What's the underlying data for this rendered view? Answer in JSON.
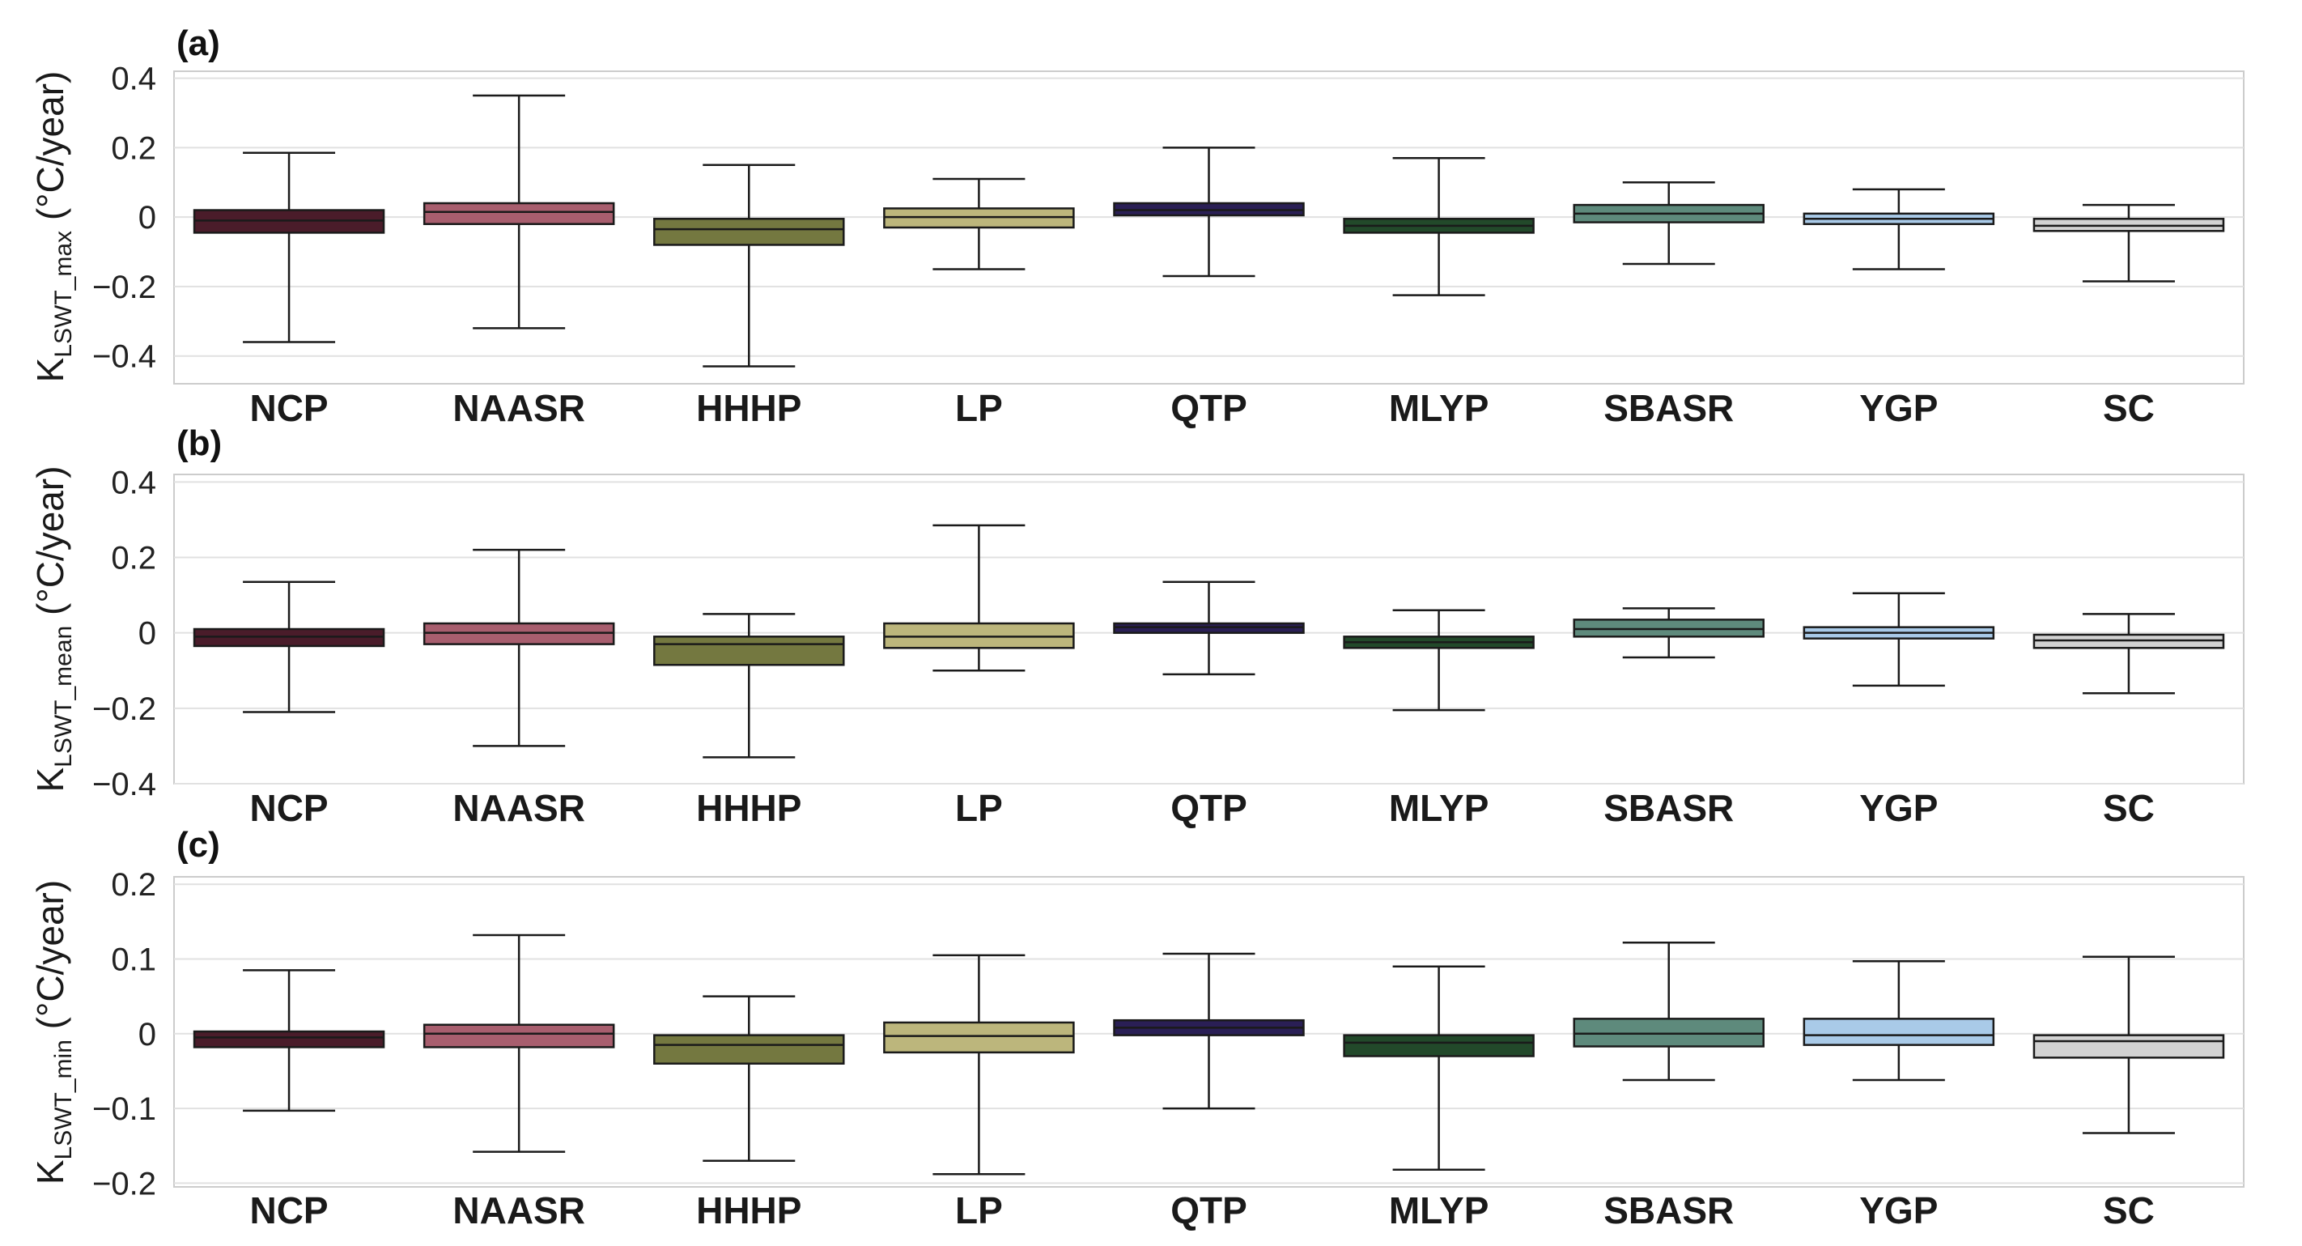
{
  "chart_data": [
    {
      "type": "box",
      "panel_label": "(a)",
      "ylabel": {
        "main": "K",
        "subscript": "LSWT_max",
        "unit": " (°C/year)"
      },
      "ylim": [
        -0.48,
        0.42
      ],
      "yticks": [
        -0.4,
        -0.2,
        0,
        0.2,
        0.4
      ],
      "ytick_labels": [
        "−0.4",
        "−0.2",
        "0",
        "0.2",
        "0.4"
      ],
      "grid": true,
      "categories": [
        "NCP",
        "NAASR",
        "HHHP",
        "LP",
        "QTP",
        "MLYP",
        "SBASR",
        "YGP",
        "SC"
      ],
      "boxes": [
        {
          "whislo": -0.36,
          "q1": -0.045,
          "med": -0.01,
          "q3": 0.02,
          "whishi": 0.185
        },
        {
          "whislo": -0.32,
          "q1": -0.02,
          "med": 0.015,
          "q3": 0.04,
          "whishi": 0.35
        },
        {
          "whislo": -0.43,
          "q1": -0.08,
          "med": -0.035,
          "q3": -0.005,
          "whishi": 0.15
        },
        {
          "whislo": -0.15,
          "q1": -0.03,
          "med": 0.0,
          "q3": 0.025,
          "whishi": 0.11
        },
        {
          "whislo": -0.17,
          "q1": 0.005,
          "med": 0.02,
          "q3": 0.04,
          "whishi": 0.2
        },
        {
          "whislo": -0.225,
          "q1": -0.045,
          "med": -0.025,
          "q3": -0.005,
          "whishi": 0.17
        },
        {
          "whislo": -0.135,
          "q1": -0.015,
          "med": 0.01,
          "q3": 0.035,
          "whishi": 0.1
        },
        {
          "whislo": -0.15,
          "q1": -0.02,
          "med": -0.005,
          "q3": 0.01,
          "whishi": 0.08
        },
        {
          "whislo": -0.185,
          "q1": -0.04,
          "med": -0.025,
          "q3": -0.005,
          "whishi": 0.035
        }
      ]
    },
    {
      "type": "box",
      "panel_label": "(b)",
      "ylabel": {
        "main": "K",
        "subscript": "LSWT_mean",
        "unit": " (°C/year)"
      },
      "ylim": [
        -0.4,
        0.42
      ],
      "yticks": [
        -0.4,
        -0.2,
        0,
        0.2,
        0.4
      ],
      "ytick_labels": [
        "−0.4",
        "−0.2",
        "0",
        "0.2",
        "0.4"
      ],
      "grid": true,
      "categories": [
        "NCP",
        "NAASR",
        "HHHP",
        "LP",
        "QTP",
        "MLYP",
        "SBASR",
        "YGP",
        "SC"
      ],
      "boxes": [
        {
          "whislo": -0.21,
          "q1": -0.035,
          "med": -0.01,
          "q3": 0.01,
          "whishi": 0.135
        },
        {
          "whislo": -0.3,
          "q1": -0.03,
          "med": 0.0,
          "q3": 0.025,
          "whishi": 0.22
        },
        {
          "whislo": -0.33,
          "q1": -0.085,
          "med": -0.03,
          "q3": -0.01,
          "whishi": 0.05
        },
        {
          "whislo": -0.1,
          "q1": -0.04,
          "med": -0.01,
          "q3": 0.025,
          "whishi": 0.285
        },
        {
          "whislo": -0.11,
          "q1": 0.0,
          "med": 0.015,
          "q3": 0.025,
          "whishi": 0.135
        },
        {
          "whislo": -0.205,
          "q1": -0.04,
          "med": -0.025,
          "q3": -0.01,
          "whishi": 0.06
        },
        {
          "whislo": -0.065,
          "q1": -0.01,
          "med": 0.01,
          "q3": 0.035,
          "whishi": 0.065
        },
        {
          "whislo": -0.14,
          "q1": -0.015,
          "med": 0.0,
          "q3": 0.015,
          "whishi": 0.105
        },
        {
          "whislo": -0.16,
          "q1": -0.04,
          "med": -0.02,
          "q3": -0.005,
          "whishi": 0.05
        }
      ]
    },
    {
      "type": "box",
      "panel_label": "(c)",
      "ylabel": {
        "main": "K",
        "subscript": "LSWT_min",
        "unit": " (°C/year)"
      },
      "ylim": [
        -0.205,
        0.21
      ],
      "yticks": [
        -0.2,
        -0.1,
        0,
        0.1,
        0.2
      ],
      "ytick_labels": [
        "−0.2",
        "−0.1",
        "0",
        "0.1",
        "0.2"
      ],
      "grid": true,
      "categories": [
        "NCP",
        "NAASR",
        "HHHP",
        "LP",
        "QTP",
        "MLYP",
        "SBASR",
        "YGP",
        "SC"
      ],
      "boxes": [
        {
          "whislo": -0.103,
          "q1": -0.018,
          "med": -0.005,
          "q3": 0.003,
          "whishi": 0.085
        },
        {
          "whislo": -0.158,
          "q1": -0.018,
          "med": 0.0,
          "q3": 0.012,
          "whishi": 0.132
        },
        {
          "whislo": -0.17,
          "q1": -0.04,
          "med": -0.015,
          "q3": -0.002,
          "whishi": 0.05
        },
        {
          "whislo": -0.188,
          "q1": -0.025,
          "med": -0.003,
          "q3": 0.015,
          "whishi": 0.105
        },
        {
          "whislo": -0.1,
          "q1": -0.002,
          "med": 0.008,
          "q3": 0.018,
          "whishi": 0.107
        },
        {
          "whislo": -0.182,
          "q1": -0.03,
          "med": -0.012,
          "q3": -0.002,
          "whishi": 0.09
        },
        {
          "whislo": -0.062,
          "q1": -0.017,
          "med": 0.0,
          "q3": 0.02,
          "whishi": 0.122
        },
        {
          "whislo": -0.062,
          "q1": -0.015,
          "med": -0.002,
          "q3": 0.02,
          "whishi": 0.097
        },
        {
          "whislo": -0.133,
          "q1": -0.032,
          "med": -0.01,
          "q3": -0.002,
          "whishi": 0.103
        }
      ]
    }
  ],
  "colors": {
    "NCP": "#4a1c2a",
    "NAASR": "#a85e6e",
    "HHHP": "#747840",
    "LP": "#bcb67c",
    "QTP": "#2a1f55",
    "MLYP": "#22492a",
    "SBASR": "#5e8a7c",
    "YGP": "#a9cae8",
    "SC": "#d2d2d2",
    "grid": "#e1e1e1",
    "frame": "#cccccc",
    "line": "#1a1a1a"
  }
}
